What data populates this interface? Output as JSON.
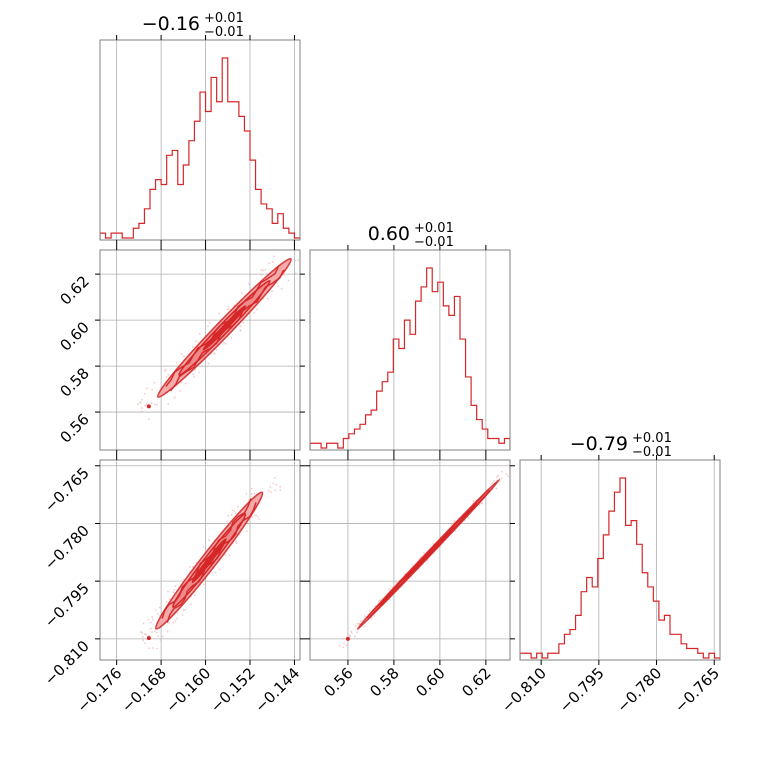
{
  "chart_data": {
    "type": "corner",
    "color": "#d62728",
    "grid": true,
    "panels_titles": [
      {
        "main": "−0.16",
        "sup": "+0.01",
        "sub": "−0.01"
      },
      {
        "main": "0.60",
        "sup": "+0.01",
        "sub": "−0.01"
      },
      {
        "main": "−0.79",
        "sup": "+0.01",
        "sub": "−0.01"
      }
    ],
    "params": [
      {
        "range": [
          -0.179,
          -0.143
        ],
        "ticks": [
          -0.176,
          -0.168,
          -0.16,
          -0.152,
          -0.144
        ],
        "tick_labels": [
          "−0.176",
          "−0.168",
          "−0.160",
          "−0.152",
          "−0.144"
        ]
      },
      {
        "range": [
          0.5435,
          0.6305
        ],
        "ticks": [
          0.56,
          0.58,
          0.6,
          0.62
        ],
        "tick_labels": [
          "0.56",
          "0.58",
          "0.60",
          "0.62"
        ]
      },
      {
        "range": [
          -0.8155,
          -0.7635
        ],
        "ticks": [
          -0.81,
          -0.795,
          -0.78,
          -0.765
        ],
        "tick_labels": [
          "−0.810",
          "−0.795",
          "−0.780",
          "−0.765"
        ]
      }
    ],
    "histograms": [
      [
        1,
        0,
        1,
        1,
        0,
        0,
        2,
        3,
        6,
        10,
        12,
        11,
        17,
        18,
        11,
        15,
        20,
        24,
        30,
        26,
        33,
        28,
        37,
        28,
        28,
        25,
        22,
        16,
        10,
        7,
        6,
        3,
        5,
        2,
        1,
        0
      ],
      [
        1,
        1,
        0,
        1,
        1,
        0,
        2,
        3,
        4,
        5,
        7,
        8,
        12,
        14,
        16,
        23,
        21,
        27,
        24,
        31,
        34,
        38,
        33,
        35,
        30,
        28,
        32,
        23,
        15,
        9,
        6,
        4,
        2,
        2,
        1,
        2
      ],
      [
        1,
        1,
        0,
        1,
        0,
        1,
        1,
        3,
        5,
        6,
        9,
        14,
        17,
        15,
        21,
        26,
        31,
        35,
        38,
        28,
        29,
        24,
        18,
        15,
        12,
        8,
        9,
        5,
        5,
        3,
        2,
        2,
        1,
        0,
        1,
        0
      ]
    ],
    "correlation": {
      "p0_p1": {
        "start": [
          -0.1702,
          0.5625
        ],
        "end": [
          -0.143,
          0.6307
        ]
      },
      "p0_p2": {
        "start": [
          -0.1702,
          -0.8098
        ],
        "end": [
          -0.1485,
          -0.7695
        ]
      },
      "p1_p2": {
        "start": [
          0.56,
          -0.81
        ],
        "end": [
          0.63,
          -0.766
        ]
      }
    }
  }
}
